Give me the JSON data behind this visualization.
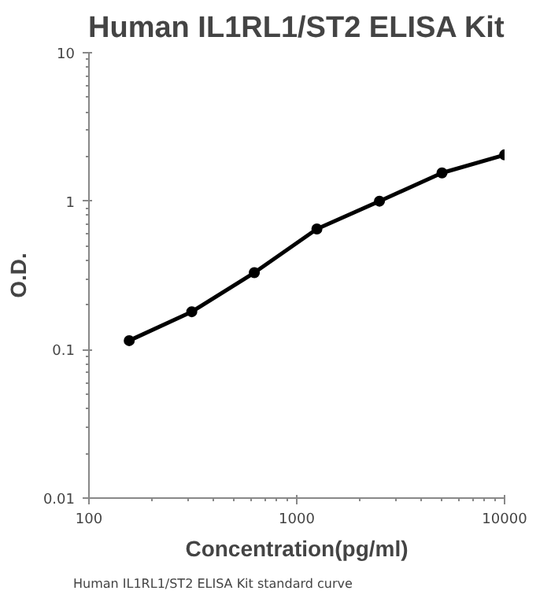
{
  "chart_data": {
    "type": "line",
    "title": "Human IL1RL1/ST2 ELISA Kit",
    "xlabel": "Concentration(pg/ml)",
    "ylabel": "O.D.",
    "log": "xy",
    "marker": "circle",
    "grid": false,
    "x": [
      156.25,
      312.5,
      625,
      1250,
      2500,
      5000,
      10000
    ],
    "series": [
      {
        "color": "#000000",
        "values": [
          0.115,
          0.18,
          0.33,
          0.65,
          1.0,
          1.55,
          2.05
        ]
      }
    ],
    "xlim": [
      100,
      10000
    ],
    "xticks": [
      100,
      1000,
      10000
    ],
    "ylim": [
      0.01,
      10
    ],
    "yticks": [
      0.01,
      0.1,
      1,
      10
    ],
    "annotations": [
      "Human IL1RL1/ST2 ELISA Kit standard curve"
    ]
  }
}
